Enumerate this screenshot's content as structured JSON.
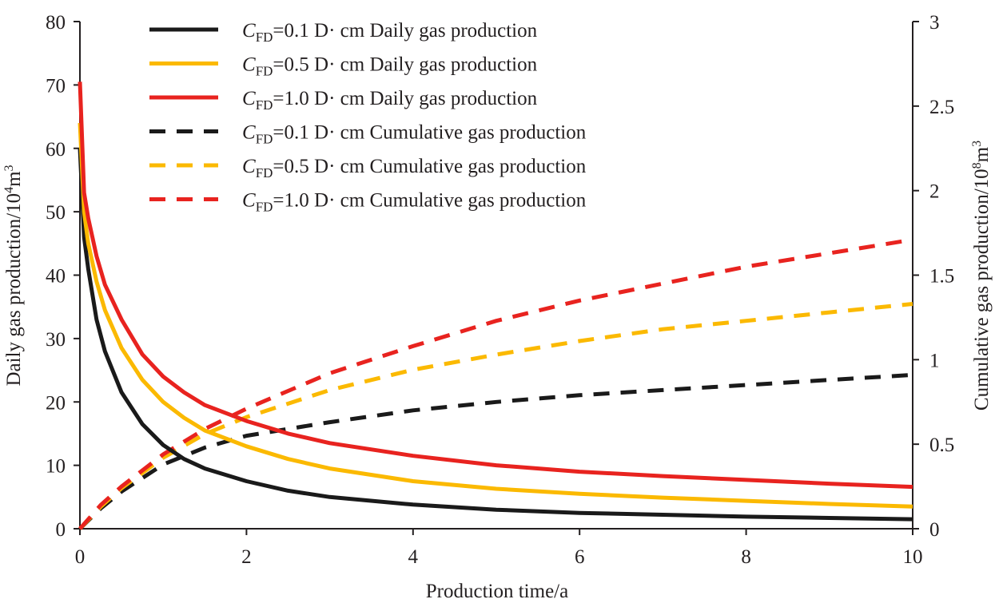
{
  "chart_data": {
    "type": "line",
    "xlabel": "Production time/a",
    "ylabel_left": "Daily gas production/10",
    "ylabel_left_sup": "4",
    "ylabel_left_unit": "m",
    "ylabel_left_unit_sup": "3",
    "ylabel_right": "Cumulative gas production/10",
    "ylabel_right_sup": "8",
    "ylabel_right_unit": "m",
    "ylabel_right_unit_sup": "3",
    "xlim": [
      0,
      10
    ],
    "ylim_left": [
      0,
      80
    ],
    "ylim_right": [
      0,
      3
    ],
    "x_ticks": [
      "0",
      "2",
      "4",
      "6",
      "8",
      "10"
    ],
    "y_left_ticks": [
      "0",
      "10",
      "20",
      "30",
      "40",
      "50",
      "60",
      "70",
      "80"
    ],
    "y_right_ticks": [
      "0",
      "0.5",
      "1",
      "1.5",
      "2",
      "2.5",
      "3"
    ],
    "legend_position": "top-left",
    "legend_prefix": "C",
    "legend_subscript": "FD",
    "series": [
      {
        "name": "CFD=0.1 D· cm Daily gas production",
        "label_value": "=0.1 D",
        "label_unit": "·  cm Daily gas production",
        "axis": "left",
        "style": "solid",
        "color": "#1a1a1a",
        "x": [
          0,
          0.05,
          0.1,
          0.2,
          0.3,
          0.5,
          0.75,
          1,
          1.25,
          1.5,
          2,
          2.5,
          3,
          4,
          5,
          6,
          7,
          8,
          9,
          10
        ],
        "y": [
          60,
          46,
          41,
          33,
          28,
          21.5,
          16.5,
          13.2,
          11,
          9.5,
          7.5,
          6.0,
          5.0,
          3.8,
          3.0,
          2.5,
          2.2,
          1.9,
          1.7,
          1.5
        ]
      },
      {
        "name": "CFD=0.5 D· cm Daily gas production",
        "label_value": "=0.5 D",
        "label_unit": "·  cm Daily gas production",
        "axis": "left",
        "style": "solid",
        "color": "#fbb900",
        "x": [
          0,
          0.05,
          0.1,
          0.2,
          0.3,
          0.5,
          0.75,
          1,
          1.25,
          1.5,
          2,
          2.5,
          3,
          4,
          5,
          6,
          7,
          8,
          9,
          10
        ],
        "y": [
          64,
          50,
          45,
          39,
          34.5,
          28.5,
          23.5,
          20,
          17.5,
          15.5,
          13,
          11,
          9.5,
          7.5,
          6.3,
          5.5,
          4.9,
          4.4,
          3.9,
          3.5
        ]
      },
      {
        "name": "CFD=1.0 D· cm Daily gas production",
        "label_value": "=1.0 D",
        "label_unit": "·  cm Daily gas production",
        "axis": "left",
        "style": "solid",
        "color": "#e8231f",
        "x": [
          0,
          0.05,
          0.1,
          0.2,
          0.3,
          0.5,
          0.75,
          1,
          1.25,
          1.5,
          2,
          2.5,
          3,
          4,
          5,
          6,
          7,
          8,
          9,
          10
        ],
        "y": [
          70.5,
          53,
          49,
          43,
          38.5,
          33,
          27.5,
          24,
          21.5,
          19.5,
          17,
          15,
          13.5,
          11.5,
          10,
          9,
          8.3,
          7.7,
          7.1,
          6.6
        ]
      },
      {
        "name": "CFD=0.1 D· cm Cumulative gas production",
        "label_value": "=0.1 D",
        "label_unit": "·  cm Cumulative gas production",
        "axis": "right",
        "style": "dashed",
        "color": "#1a1a1a",
        "x": [
          0,
          0.25,
          0.5,
          1,
          1.5,
          2,
          3,
          4,
          5,
          6,
          7,
          8,
          9,
          10
        ],
        "y": [
          0,
          0.12,
          0.22,
          0.38,
          0.48,
          0.55,
          0.63,
          0.7,
          0.75,
          0.79,
          0.82,
          0.85,
          0.88,
          0.91
        ]
      },
      {
        "name": "CFD=0.5 D· cm Cumulative gas production",
        "label_value": "=0.5 D",
        "label_unit": "·  cm Cumulative gas production",
        "axis": "right",
        "style": "dashed",
        "color": "#fbb900",
        "x": [
          0,
          0.25,
          0.5,
          1,
          1.5,
          2,
          3,
          4,
          5,
          6,
          7,
          8,
          9,
          10
        ],
        "y": [
          0,
          0.13,
          0.24,
          0.42,
          0.56,
          0.66,
          0.82,
          0.94,
          1.03,
          1.11,
          1.18,
          1.23,
          1.28,
          1.33
        ]
      },
      {
        "name": "CFD=1.0 D· cm Cumulative gas production",
        "label_value": "=1.0 D",
        "label_unit": "·  cm Cumulative gas production",
        "axis": "right",
        "style": "dashed",
        "color": "#e8231f",
        "x": [
          0,
          0.25,
          0.5,
          1,
          1.5,
          2,
          3,
          4,
          5,
          6,
          7,
          8,
          9,
          10
        ],
        "y": [
          0,
          0.14,
          0.25,
          0.44,
          0.59,
          0.71,
          0.92,
          1.08,
          1.23,
          1.35,
          1.45,
          1.55,
          1.63,
          1.71
        ]
      }
    ]
  }
}
